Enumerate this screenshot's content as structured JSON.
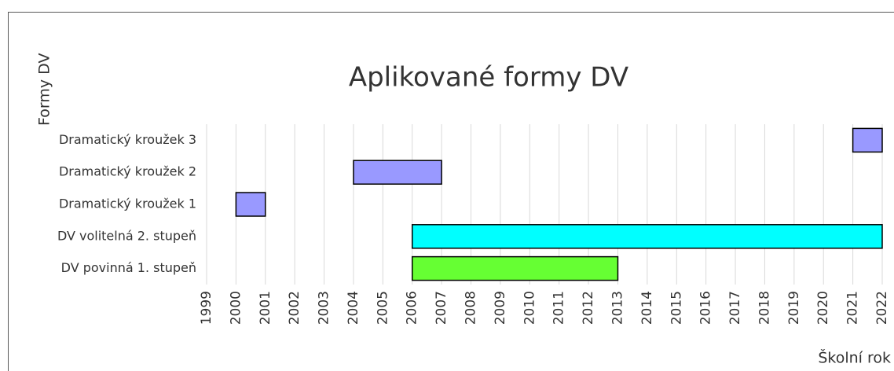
{
  "chart_data": {
    "type": "gantt",
    "title": "Aplikované formy DV",
    "y_label": "Formy DV",
    "x_label": "Školní rok",
    "categories": [
      "Dramatický kroužek 3",
      "Dramatický kroužek 2",
      "Dramatický kroužek 1",
      "DV volitelná 2. stupeň",
      "DV povinná 1. stupeň"
    ],
    "start": [
      2021,
      2004,
      2000,
      2006,
      2006
    ],
    "end": [
      2022,
      2007,
      2001,
      2022,
      2013
    ],
    "colors": [
      "#9999ff",
      "#9999ff",
      "#9999ff",
      "#00ffff",
      "#66ff33"
    ],
    "xlim": [
      1999,
      2022
    ],
    "xticks": [
      1999,
      2000,
      2001,
      2002,
      2003,
      2004,
      2005,
      2006,
      2007,
      2008,
      2009,
      2010,
      2011,
      2012,
      2013,
      2014,
      2015,
      2016,
      2017,
      2018,
      2019,
      2020,
      2021,
      2022
    ],
    "grid": true
  }
}
